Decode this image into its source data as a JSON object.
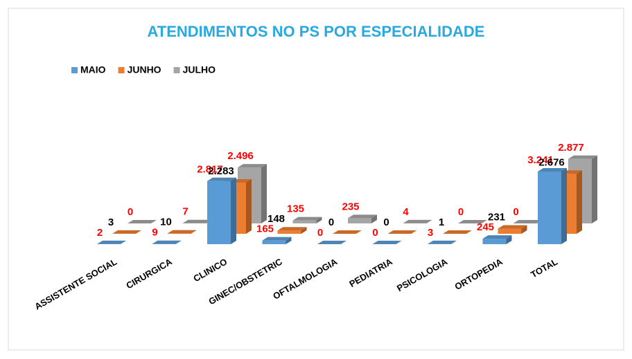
{
  "chart_data": {
    "type": "bar3d",
    "title": "ATENDIMENTOS NO PS POR ESPECIALIDADE",
    "categories": [
      "ASSISTENTE SOCIAL",
      "CIRURGICA",
      "CLINICO",
      "GINEC/OBSTETRIC",
      "OFTALMOLOGIA",
      "PEDIATRIA",
      "PSICOLOGIA",
      "ORTOPEDIA",
      "TOTAL"
    ],
    "series": [
      {
        "name": "MAIO",
        "color": "#5b9bd5",
        "label_color": "#ff0000",
        "values": [
          2,
          9,
          2817,
          165,
          0,
          0,
          3,
          245,
          3241
        ],
        "value_labels": [
          "2",
          "9",
          "2.817",
          "165",
          "0",
          "0",
          "3",
          "245",
          "3.241"
        ]
      },
      {
        "name": "JUNHO",
        "color": "#ed7d31",
        "label_color": "#000000",
        "values": [
          3,
          10,
          2283,
          148,
          0,
          0,
          1,
          231,
          2676
        ],
        "value_labels": [
          "3",
          "10",
          "2.283",
          "148",
          "0",
          "0",
          "1",
          "231",
          "2.676"
        ]
      },
      {
        "name": "JULHO",
        "color": "#a5a5a5",
        "label_color": "#ff0000",
        "values": [
          0,
          7,
          2496,
          135,
          235,
          4,
          0,
          0,
          2877
        ],
        "value_labels": [
          "0",
          "7",
          "2.496",
          "135",
          "235",
          "4",
          "0",
          "0",
          "2.877"
        ]
      }
    ],
    "legend": "top-left"
  }
}
